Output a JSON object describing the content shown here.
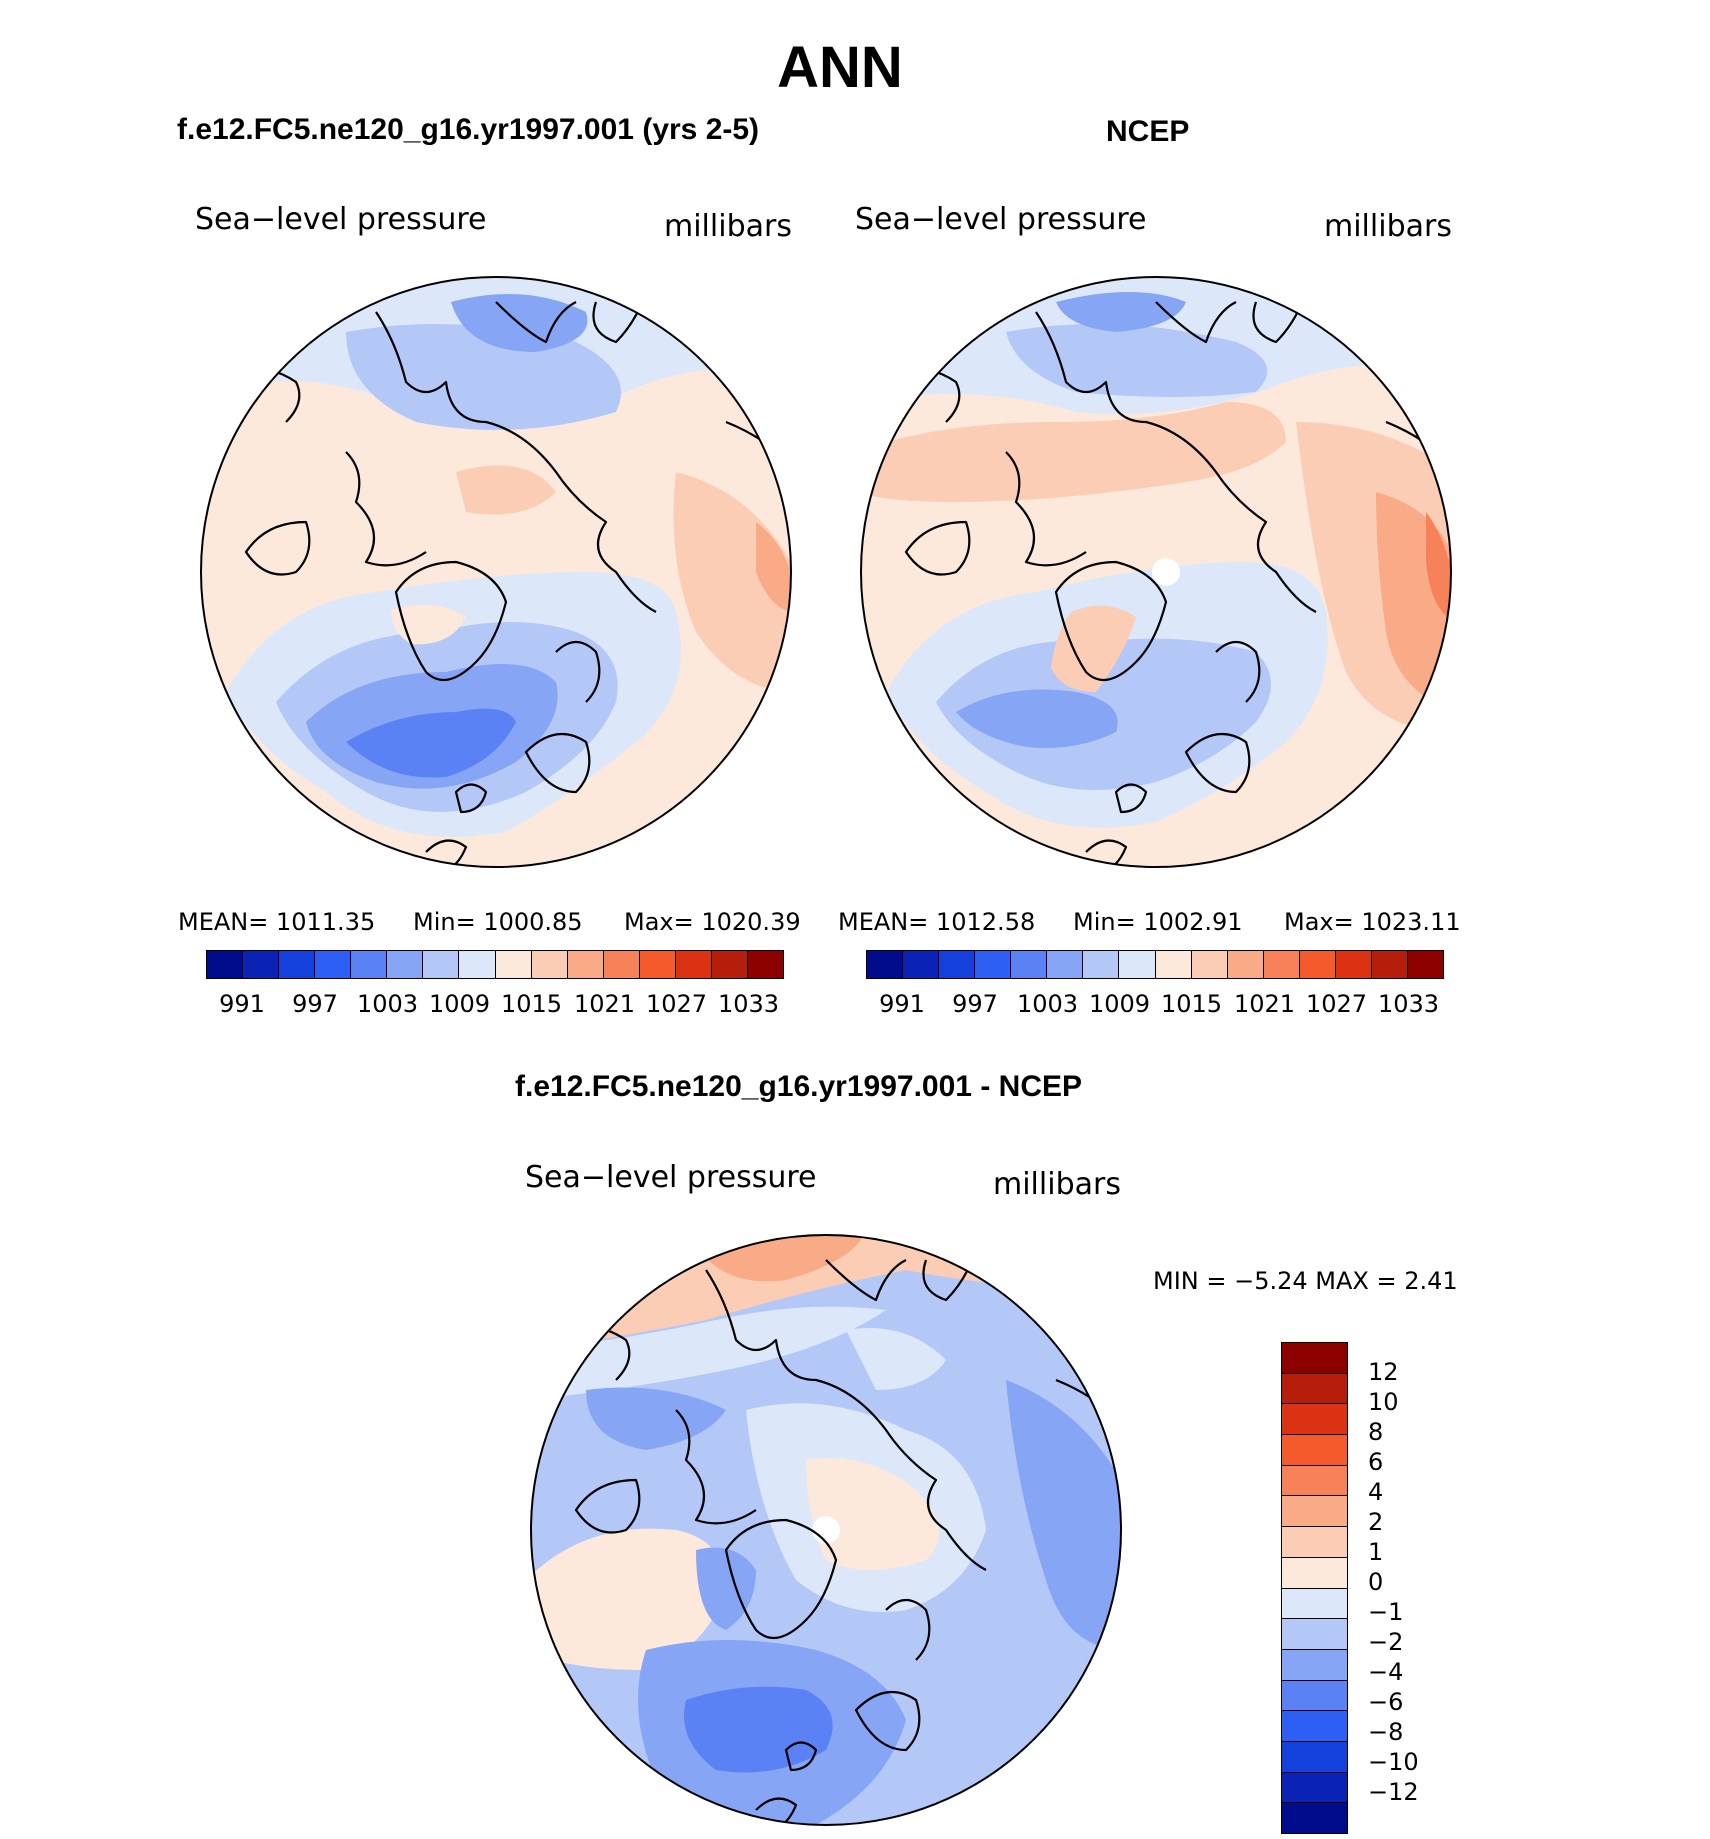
{
  "figure": {
    "title": "ANN",
    "panels": [
      {
        "title": "f.e12.FC5.ne120_g16.yr1997.001 (yrs 2-5)",
        "variable_label": "Sea−level pressure",
        "units_label": "millibars",
        "stats": {
          "mean": "MEAN=  1011.35",
          "min": "Min=  1000.85",
          "max": "Max=  1020.39"
        },
        "colorbar_ticks": [
          "991",
          "997",
          "1003",
          "1009",
          "1015",
          "1021",
          "1027",
          "1033"
        ]
      },
      {
        "title": "NCEP",
        "variable_label": "Sea−level pressure",
        "units_label": "millibars",
        "stats": {
          "mean": "MEAN=  1012.58",
          "min": "Min=  1002.91",
          "max": "Max=  1023.11"
        },
        "colorbar_ticks": [
          "991",
          "997",
          "1003",
          "1009",
          "1015",
          "1021",
          "1027",
          "1033"
        ]
      },
      {
        "title": "f.e12.FC5.ne120_g16.yr1997.001 - NCEP",
        "variable_label": "Sea−level pressure",
        "units_label": "millibars",
        "stats": {
          "minmax": "MIN =    −5.24  MAX =     2.41"
        },
        "colorbar_ticks": [
          "12",
          "10",
          "8",
          "6",
          "4",
          "2",
          "1",
          "0",
          "−1",
          "−2",
          "−4",
          "−6",
          "−8",
          "−10",
          "−12"
        ]
      }
    ],
    "palette": [
      "#000c8c",
      "#0a23b4",
      "#1441dc",
      "#2d5ff5",
      "#5a82f5",
      "#87a5f5",
      "#b4c8f8",
      "#dce8fa",
      "#fde9dc",
      "#fbcdb4",
      "#f9aa87",
      "#f7825a",
      "#f55a2d",
      "#dc3214",
      "#b41e0a",
      "#8c0000"
    ],
    "projection": "north polar stereographic"
  }
}
